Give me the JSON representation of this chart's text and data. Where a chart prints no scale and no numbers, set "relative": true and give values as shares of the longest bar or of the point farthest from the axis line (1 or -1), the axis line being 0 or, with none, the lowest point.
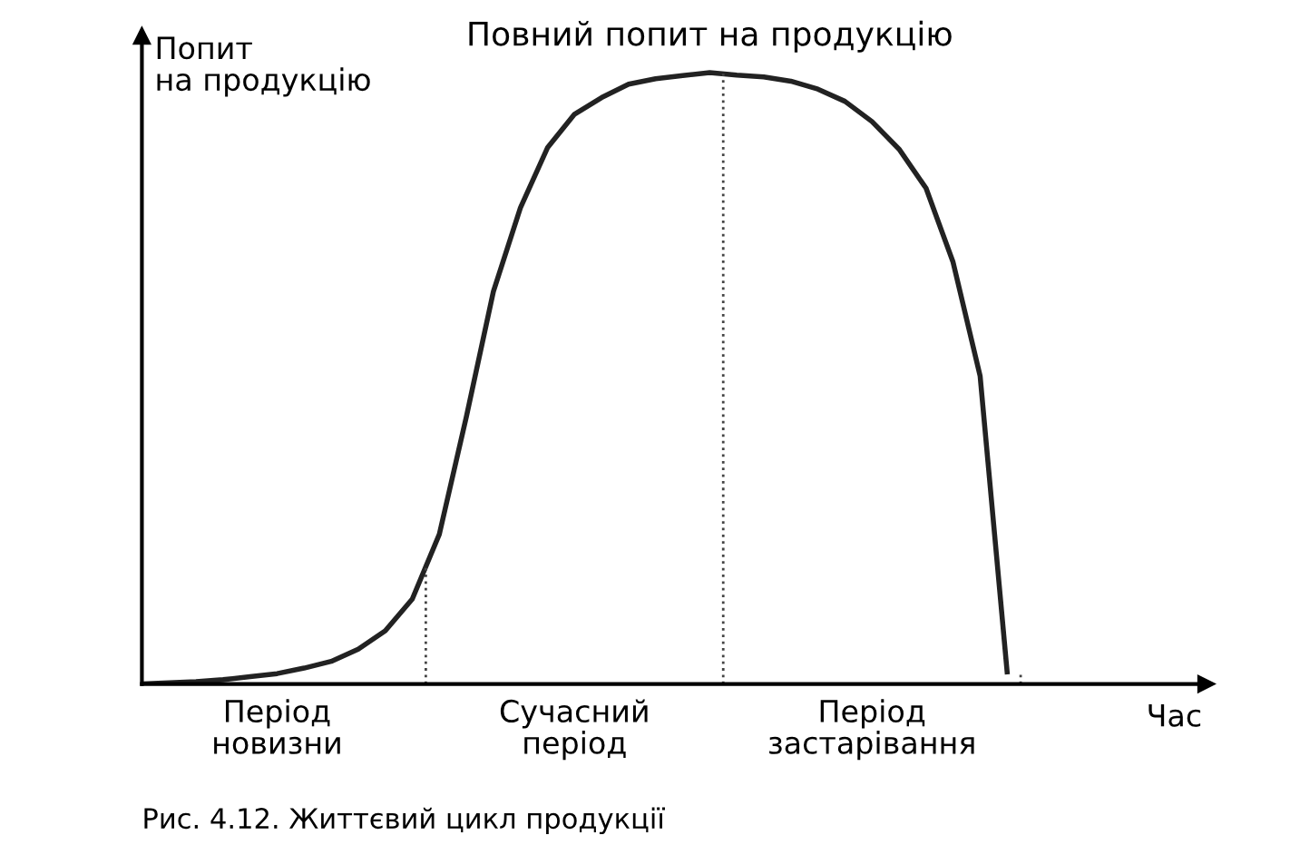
{
  "chart_data": {
    "type": "line",
    "relative": true,
    "ylabel": "Попит\nна продукцію",
    "xlabel": "Час",
    "color": "#222222",
    "line_style": "solid",
    "marker": "none",
    "categories": [
      null,
      null,
      null,
      null,
      null,
      "Період\nновизни",
      null,
      null,
      null,
      null,
      null,
      null,
      null,
      null,
      null,
      null,
      "Сучасний\nперіод",
      null,
      null,
      null,
      null,
      null,
      null,
      null,
      null,
      null,
      null,
      "Період\nзастарівання",
      null,
      null,
      null,
      null,
      null
    ],
    "values": [
      0,
      0.002,
      0.004,
      0.007,
      0.012,
      0.017,
      0.026,
      0.037,
      0.057,
      0.087,
      0.139,
      0.245,
      0.437,
      0.642,
      0.779,
      0.877,
      0.932,
      0.959,
      0.981,
      0.99,
      0.995,
      1.0,
      0.996,
      0.993,
      0.986,
      0.973,
      0.953,
      0.92,
      0.875,
      0.811,
      0.69,
      0.504,
      0.02
    ],
    "annotations": [
      "Повний попит на продукцію",
      "Рис. 4.12. Життєвий цикл продукції"
    ]
  }
}
